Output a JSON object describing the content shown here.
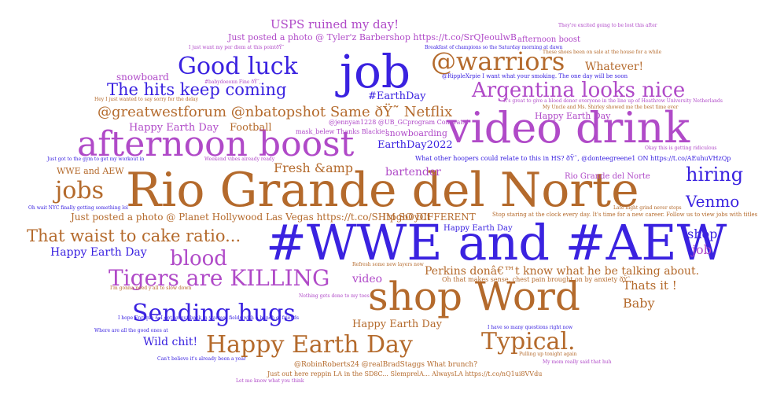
{
  "colors": {
    "brown": "#b46a2c",
    "purple": "#b04ac8",
    "blue": "#3a22e0"
  },
  "words": {
    "rio": "Rio Grande del Norte",
    "wwe": "#WWE and #AEW",
    "shop_word": "shop Word",
    "job_big": "job",
    "video_drink": "video drink",
    "afternoon_boost": "afternoon boost",
    "warriors": "@warriors",
    "good_luck": "Good luck",
    "happy_earth_big": "Happy Earth Day",
    "sending_hugs": "Sending hugs",
    "tigers": "Tigers are KILLING",
    "argentina": "Argentina looks nice",
    "hits": "The hits keep coming",
    "greatwest": "@greatwestforum @nbatopshot Same ðŸ˜ Netflix",
    "waist": "That waist to cake ratio...",
    "jobs": "jobs",
    "blood": "blood",
    "typical": "Typical.",
    "hiring": "hiring",
    "venmo": "Venmo",
    "usps": "USPS ruined my day!",
    "whatever": "Whatever!",
    "snowboard": "snowboard",
    "earthday_tag": "#EarthDay",
    "fresh_amp": "Fresh &amp",
    "bartender": "bartender",
    "shop_small": "shop",
    "job_small": "job",
    "thats_it": "Thats it !",
    "baby": "Baby",
    "wild_chit": "Wild chit!",
    "happy_earth_1": "Happy Earth Day",
    "happy_earth_2": "Happy Earth Day",
    "happy_earth_3": "Happy Earth Day",
    "happy_earth_4": "Happy Earth Day",
    "happy_earth_5": "Happy Earth Day",
    "football": "Football",
    "earthday2022": "EarthDay2022",
    "snowboarding": "snowboarding",
    "wwe_aew_small": "WWE and AEW",
    "perkins": "Perkins donâ€™t know what he be talking about.",
    "video_small": "video",
    "im_different": "IM SO DIFFERENT",
    "planet_hollywood": "Just posted a photo @ Planet Hollywood Las Vegas https://t.co/SHtpgb0yCt",
    "tylerz": "Just posted a photo @ Tyler'z Barbershop https://t.co/SrQJeoulwB",
    "afternoon_small": "afternoon boost",
    "rio_small": "Rio Grande del Norte",
    "stop_staring": "Stop staring at the clock every day. It's time for a new career. Follow us to view jobs with titles",
    "chest_pain": "Oh that makes sense, chest pain brought on by anxiety ðŸ˜­",
    "other_hoopers": "What other hoopers could relate to this in HS? ðŸ˜‚ @donteegreene1 ON https://t.co/AEuhuVHzQp",
    "jennyan": "@jennyan1228 @UB_GCprogram Congrats!",
    "mask": "mask_belew Thanks Blackie!",
    "ripple": "@RippleXrpie I want what your smoking. The one day will be soon",
    "robin": "@RobinRoberts24 @realBradStaggs What brunch?",
    "just_out": "Just out here reppin LA in the SD8C... SlemprelA... AlwaysLA https://t.co/nQ1ui8VVdu",
    "tiny_1": "I just want my per diem at this pointðŸ˜­",
    "tiny_2": "Breakfast of champions so the Saturday morning at dawn",
    "tiny_3": "It's great to give a blood donor everyone in the line up of Heathrow University Netherlands",
    "tiny_4": "My Uncle and Ms. Shirley showed me the best time ever",
    "tiny_5": "I hope Enrique & I got an out back in warmer fields with a bunch of friends",
    "tiny_6": "Oh wait NYC finally getting something lol",
    "tiny_7": "Refresh some new layers now",
    "tiny_8": "Nothing gets done to my toes",
    "tiny_9": "I'm gonna need y'all to slow down",
    "tiny_10": "These shoes been on sale at the house for a while",
    "tiny_11": "They're excited going to be lost this after",
    "tiny_12": "Just got to the gym to get my workout in",
    "tiny_13": "Weekend vibes already ready",
    "tiny_14": "#babydoeonn Fine ðŸ˜‚",
    "tiny_15": "Hey I just wanted to say sorry for the delay",
    "tiny_16": "I have so many questions right now",
    "tiny_17": "Pulling up tonight again",
    "tiny_18": "My mom really said that huh",
    "tiny_19": "Can't believe it's already been a year",
    "tiny_20": "Late night grind never stops",
    "tiny_21": "Okay this is getting ridiculous",
    "tiny_22": "Where are all the good ones at",
    "tiny_23": "Let me know what you think"
  }
}
